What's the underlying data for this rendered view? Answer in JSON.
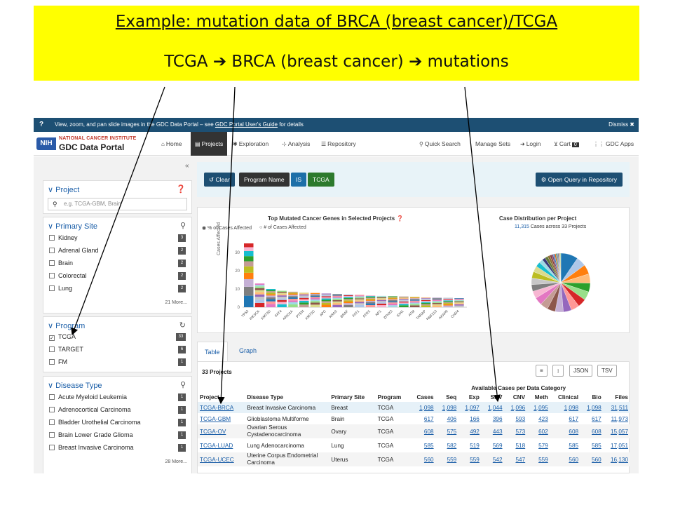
{
  "banner": {
    "title": "Example: mutation data of BRCA (breast cancer)/TCGA",
    "subtitle": "TCGA ➔ BRCA (breast cancer) ➔ mutations"
  },
  "notice": {
    "icon": "?",
    "text": "View, zoom, and pan slide images in the GDC Data Portal – see ",
    "link": "GDC Portal User's Guide",
    "suffix": " for details",
    "dismiss": "Dismiss ✖"
  },
  "nav": {
    "nih": "NIH",
    "nci": "NATIONAL CANCER INSTITUTE",
    "gdc": "GDC Data Portal",
    "home": "Home",
    "projects": "Projects",
    "exploration": "Exploration",
    "analysis": "Analysis",
    "repository": "Repository",
    "quick_search": "Quick Search",
    "manage_sets": "Manage Sets",
    "login": "Login",
    "cart": "Cart",
    "cart_count": "0",
    "gdc_apps": "GDC Apps"
  },
  "sidebar": {
    "collapse": "«",
    "project": {
      "title": "∨ Project",
      "placeholder": "e.g. TCGA-GBM, Brain"
    },
    "primary_site": {
      "title": "∨ Primary Site",
      "items": [
        {
          "label": "Kidney",
          "count": "3"
        },
        {
          "label": "Adrenal Gland",
          "count": "2"
        },
        {
          "label": "Brain",
          "count": "2"
        },
        {
          "label": "Colorectal",
          "count": "2"
        },
        {
          "label": "Lung",
          "count": "2"
        }
      ],
      "more": "21 More..."
    },
    "program": {
      "title": "∨ Program",
      "items": [
        {
          "label": "TCGA",
          "count": "33",
          "checked": true
        },
        {
          "label": "TARGET",
          "count": "6"
        },
        {
          "label": "FM",
          "count": "1"
        }
      ]
    },
    "disease_type": {
      "title": "∨ Disease Type",
      "items": [
        {
          "label": "Acute Myeloid Leukemia",
          "count": "1"
        },
        {
          "label": "Adrenocortical Carcinoma",
          "count": "1"
        },
        {
          "label": "Bladder Urothelial Carcinoma",
          "count": "1"
        },
        {
          "label": "Brain Lower Grade Glioma",
          "count": "1"
        },
        {
          "label": "Breast Invasive Carcinoma",
          "count": "1"
        }
      ],
      "more": "28 More..."
    }
  },
  "query": {
    "clear": "↺ Clear",
    "field": "Program Name",
    "op": "IS",
    "value": "TCGA",
    "open": "⚙ Open Query in Repository"
  },
  "genes_chart": {
    "title": "Top Mutated Cancer Genes in Selected Projects ❓",
    "radio1": "% of Cases Affected",
    "radio2": "# of Cases Affected",
    "ylabel": "Cases Affected",
    "ticks": [
      "30",
      "20",
      "10",
      "0"
    ]
  },
  "chart_data": {
    "type": "bar",
    "title": "Top Mutated Cancer Genes in Selected Projects",
    "ylabel": "Cases Affected",
    "ylim": [
      0,
      38
    ],
    "categories": [
      "TP53",
      "PIK3CA",
      "KMT2D",
      "FAT4",
      "ARID1A",
      "PTEN",
      "KMT2C",
      "APC",
      "KRAS",
      "BRAF",
      "FAT1",
      "ATRX",
      "NF1",
      "ZFHX3",
      "IDH1",
      "ATM",
      "TRRAP",
      "RNF213",
      "AKAP9",
      "CHD4"
    ],
    "values": [
      35,
      13,
      10,
      9,
      8.5,
      8,
      7.8,
      7.5,
      7.2,
      7,
      6.8,
      6.5,
      6.2,
      6,
      5.8,
      5.6,
      5.4,
      5.3,
      5.2,
      5
    ],
    "colors": [
      "#1f77b4",
      "#ff7f0e",
      "#2ca02c",
      "#d62728",
      "#9467bd",
      "#8c564b",
      "#e377c2",
      "#7f7f7f",
      "#bcbd22",
      "#17becf",
      "#aec7e8",
      "#ffbb78",
      "#98df8a",
      "#ff9896",
      "#c5b0d5",
      "#c49c94",
      "#f7b6d2",
      "#c7c7c7",
      "#dbdb8d",
      "#9edae5"
    ]
  },
  "case_dist": {
    "title": "Case Distribution per Project",
    "count": "11,315",
    "suffix": " Cases across 33 Projects",
    "slices": [
      1098,
      617,
      608,
      585,
      560,
      548,
      533,
      529,
      522,
      515,
      509,
      500,
      495,
      461,
      432,
      412,
      412,
      376,
      307,
      250,
      200,
      185,
      150,
      120,
      100,
      90,
      80,
      66,
      60,
      56,
      51,
      48,
      36
    ],
    "colors": [
      "#1f77b4",
      "#aec7e8",
      "#ff7f0e",
      "#ffbb78",
      "#2ca02c",
      "#98df8a",
      "#d62728",
      "#ff9896",
      "#9467bd",
      "#c5b0d5",
      "#8c564b",
      "#c49c94",
      "#e377c2",
      "#f7b6d2",
      "#7f7f7f",
      "#c7c7c7",
      "#bcbd22",
      "#dbdb8d",
      "#17becf",
      "#9edae5",
      "#393b79",
      "#637939",
      "#8c6d31",
      "#843c39",
      "#7b4173",
      "#3182bd",
      "#e6550d",
      "#31a354",
      "#756bb1",
      "#636363",
      "#6baed6",
      "#fd8d3c",
      "#74c476"
    ]
  },
  "tabs": {
    "table": "Table",
    "graph": "Graph"
  },
  "table": {
    "count": "33 Projects",
    "btn_cols": "≡",
    "btn_sort": "↕",
    "btn_json": "JSON",
    "btn_tsv": "TSV",
    "group": "Available Cases per Data Category",
    "headers": [
      "Project",
      "Disease Type",
      "Primary Site",
      "Program",
      "Cases",
      "Seq",
      "Exp",
      "SNV",
      "CNV",
      "Meth",
      "Clinical",
      "Bio",
      "Files"
    ],
    "rows": [
      [
        "TCGA-BRCA",
        "Breast Invasive Carcinoma",
        "Breast",
        "TCGA",
        "1,098",
        "1,098",
        "1,097",
        "1,044",
        "1,096",
        "1,095",
        "1,098",
        "1,098",
        "31,511"
      ],
      [
        "TCGA-GBM",
        "Glioblastoma Multiforme",
        "Brain",
        "TCGA",
        "617",
        "406",
        "166",
        "396",
        "593",
        "423",
        "617",
        "617",
        "11,973"
      ],
      [
        "TCGA-OV",
        "Ovarian Serous Cystadenocarcinoma",
        "Ovary",
        "TCGA",
        "608",
        "575",
        "492",
        "443",
        "573",
        "602",
        "608",
        "608",
        "15,057"
      ],
      [
        "TCGA-LUAD",
        "Lung Adenocarcinoma",
        "Lung",
        "TCGA",
        "585",
        "582",
        "519",
        "569",
        "518",
        "579",
        "585",
        "585",
        "17,051"
      ],
      [
        "TCGA-UCEC",
        "Uterine Corpus Endometrial Carcinoma",
        "Uterus",
        "TCGA",
        "560",
        "559",
        "559",
        "542",
        "547",
        "559",
        "560",
        "560",
        "16,130"
      ]
    ]
  }
}
